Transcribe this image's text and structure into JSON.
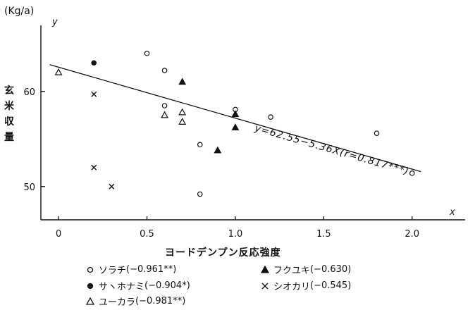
{
  "chart_data": {
    "type": "scatter",
    "title": "",
    "unit_label": "(Kg/a)",
    "ylabel": "玄米収量",
    "xlabel": "ヨードデンプン反応強度",
    "y_axis_symbol": "y",
    "x_axis_symbol": "x",
    "xlim": [
      -0.1,
      2.3
    ],
    "ylim": [
      46.5,
      66.5
    ],
    "x_ticks": [
      {
        "value": 0,
        "label": "0"
      },
      {
        "value": 0.5,
        "label": "0.5"
      },
      {
        "value": 1.0,
        "label": "1.0"
      },
      {
        "value": 1.5,
        "label": "1.5"
      },
      {
        "value": 2.0,
        "label": "2.0"
      }
    ],
    "y_ticks": [
      {
        "value": 50,
        "label": "50"
      },
      {
        "value": 60,
        "label": "60"
      }
    ],
    "grid": false,
    "legend_placement": "bottom",
    "series": [
      {
        "name": "ソラチ",
        "r_label": "(−0.961**)",
        "marker": "circle-open",
        "points": [
          [
            0.5,
            64.0
          ],
          [
            0.6,
            62.2
          ],
          [
            0.6,
            58.5
          ],
          [
            0.8,
            54.4
          ],
          [
            0.8,
            49.2
          ],
          [
            1.0,
            58.1
          ],
          [
            1.2,
            57.3
          ],
          [
            1.8,
            55.6
          ],
          [
            2.0,
            51.4
          ]
        ]
      },
      {
        "name": "サヽホナミ",
        "r_label": "(−0.904*)",
        "marker": "circle-filled",
        "points": [
          [
            0.2,
            63.0
          ]
        ]
      },
      {
        "name": "ユーカラ",
        "r_label": "(−0.981**)",
        "marker": "triangle-open",
        "points": [
          [
            0.0,
            62.0
          ],
          [
            0.6,
            57.5
          ],
          [
            0.7,
            57.8
          ],
          [
            0.7,
            56.8
          ]
        ]
      },
      {
        "name": "フクユキ",
        "r_label": "(−0.630)",
        "marker": "triangle-filled",
        "points": [
          [
            0.7,
            61.0
          ],
          [
            0.9,
            53.8
          ],
          [
            1.0,
            57.6
          ],
          [
            1.0,
            56.2
          ]
        ]
      },
      {
        "name": "シオカリ",
        "r_label": "(−0.545)",
        "marker": "x",
        "points": [
          [
            0.2,
            59.7
          ],
          [
            0.2,
            52.0
          ],
          [
            0.3,
            50.0
          ]
        ]
      }
    ],
    "regression": {
      "equation": "y=62.55−5.36X(r=0.817***)",
      "intercept": 62.55,
      "slope": -5.36,
      "x_range": [
        -0.05,
        2.05
      ]
    }
  },
  "colors": {
    "ink": "#111111",
    "background": "#ffffff"
  }
}
